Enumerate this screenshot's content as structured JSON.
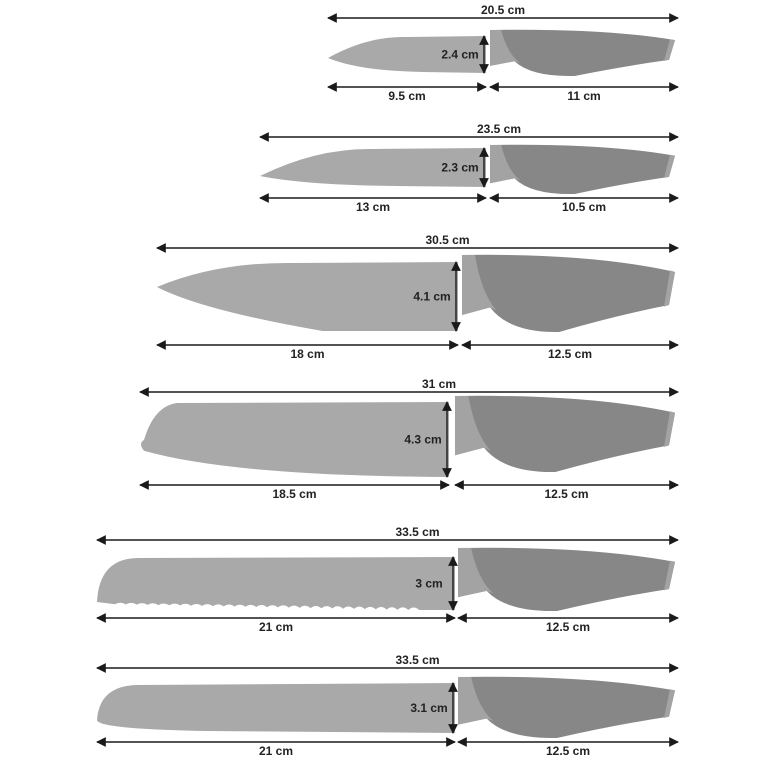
{
  "colors": {
    "blade": "#a9a9a9",
    "handle": "#878787",
    "bolster": "#a3a3a3",
    "arrow": "#1a1a1a"
  },
  "knives": [
    {
      "type": "paring",
      "total": "20.5 cm",
      "height": "2.4 cm",
      "blade": "9.5 cm",
      "handle": "11 cm"
    },
    {
      "type": "utility",
      "total": "23.5 cm",
      "height": "2.3 cm",
      "blade": "13 cm",
      "handle": "10.5 cm"
    },
    {
      "type": "chef",
      "total": "30.5 cm",
      "height": "4.1 cm",
      "blade": "18 cm",
      "handle": "12.5 cm"
    },
    {
      "type": "santoku",
      "total": "31 cm",
      "height": "4.3 cm",
      "blade": "18.5 cm",
      "handle": "12.5 cm"
    },
    {
      "type": "bread",
      "total": "33.5 cm",
      "height": "3 cm",
      "blade": "21 cm",
      "handle": "12.5 cm"
    },
    {
      "type": "slicer",
      "total": "33.5 cm",
      "height": "3.1 cm",
      "blade": "21 cm",
      "handle": "12.5 cm"
    }
  ]
}
